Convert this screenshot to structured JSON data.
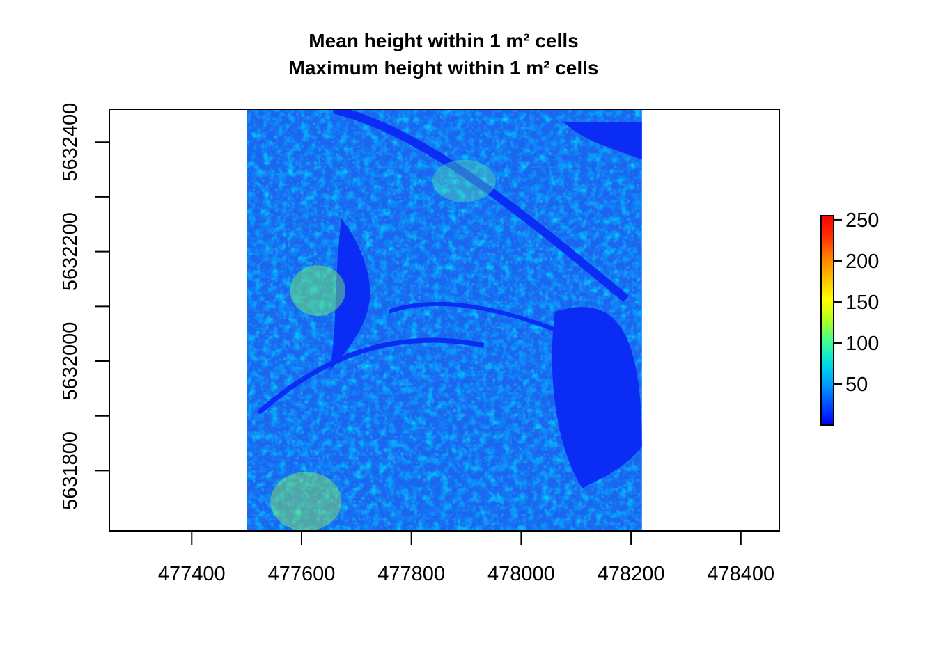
{
  "chart_data": {
    "type": "heatmap",
    "title_lines": [
      "Mean height within 1 m² cells",
      "Maximum height within 1 m² cells"
    ],
    "xlabel": "",
    "ylabel": "",
    "x_range": [
      477250,
      478470
    ],
    "y_range": [
      5631690,
      5632460
    ],
    "x_ticks": [
      477400,
      477600,
      477800,
      478000,
      478200,
      478400
    ],
    "x_tick_labels": [
      "477400",
      "477600",
      "477800",
      "478000",
      "478200",
      "478400"
    ],
    "y_ticks": [
      5631800,
      5632000,
      5632200,
      5632400
    ],
    "y_tick_labels": [
      "5631800",
      "5632000",
      "5632200",
      "5632400"
    ],
    "y_minor_ticks": [
      5631900,
      5632100,
      5632300
    ],
    "raster_extent": {
      "xmin": 477500,
      "xmax": 478220,
      "ymin": 5631690,
      "ymax": 5632460
    },
    "legend": {
      "position": "right",
      "range": [
        0,
        255
      ],
      "ticks": [
        50,
        100,
        150,
        200,
        250
      ],
      "tick_labels": [
        "50",
        "100",
        "150",
        "200",
        "250"
      ],
      "colors": [
        "#0000ff",
        "#0050ff",
        "#00a0ff",
        "#00e0e0",
        "#40ff90",
        "#b0ff20",
        "#ffff00",
        "#ffc000",
        "#ff8000",
        "#ff3000",
        "#ff0000"
      ]
    }
  }
}
